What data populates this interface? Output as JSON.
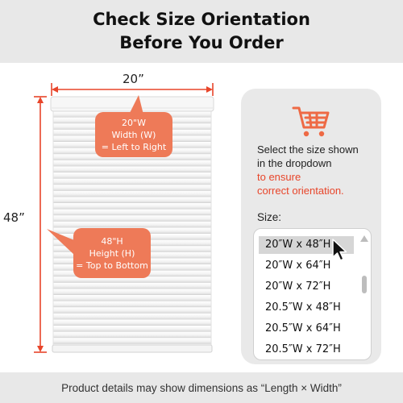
{
  "header": {
    "title_line1": "Check Size Orientation",
    "title_line2": "Before You Order"
  },
  "dimensions": {
    "width_label": "20”",
    "height_label": "48”",
    "accent_color": "#e8452a"
  },
  "width_callout": {
    "line1": "20\"W",
    "line2": "Width (W)",
    "line3": "= Left to Right",
    "color": "#ee7a58"
  },
  "height_callout": {
    "line1": "48\"H",
    "line2": "Height (H)",
    "line3": "= Top to Bottom",
    "color": "#ee7a58"
  },
  "info_panel": {
    "icon": "shopping-cart-icon",
    "text_line1": "Select the size shown",
    "text_line2": "in the dropdown",
    "highlight_line1": "to ensure",
    "highlight_line2": "correct orientation.",
    "highlight_color": "#e8452a",
    "size_label": "Size:",
    "options": [
      "20″W x 48″H",
      "20″W x 64″H",
      "20″W x 72″H",
      "20.5″W x 48″H",
      "20.5″W x 64″H",
      "20.5″W x 72″H"
    ],
    "selected_index": 0
  },
  "footer": {
    "note": "Product details may show dimensions as “Length × Width”"
  }
}
